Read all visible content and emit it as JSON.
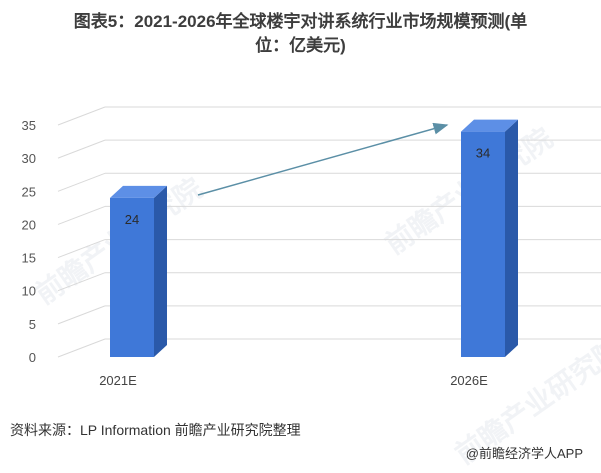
{
  "chart_data": {
    "type": "bar",
    "title_line1": "图表5：2021-2026年全球楼宇对讲系统行业市场规模预测(单",
    "title_line2": "位：亿美元)",
    "categories": [
      "2021E",
      "2026E"
    ],
    "values": [
      24,
      34
    ],
    "ylim": [
      0,
      35
    ],
    "yticks": [
      "0",
      "5",
      "10",
      "15",
      "20",
      "25",
      "30",
      "35"
    ],
    "grid": true,
    "bar_style": "3d",
    "trend_arrow": true,
    "colors": {
      "bar_front": "#3f78d8",
      "bar_side": "#2a59a9",
      "bar_top": "#5d8fe6",
      "arrow": "#5b8fa6",
      "grid": "#d9d9d9"
    }
  },
  "source": "资料来源：LP Information 前瞻产业研究院整理",
  "credit": "@前瞻经济学人APP",
  "watermark": "前瞻产业研究院"
}
